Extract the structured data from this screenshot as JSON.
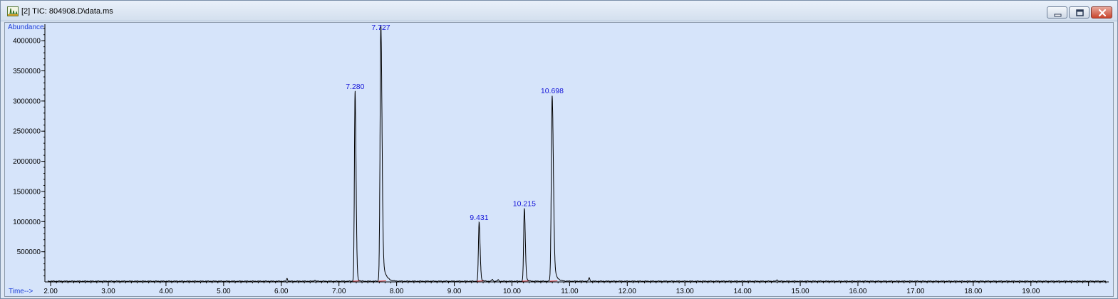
{
  "window": {
    "title": "[2] TIC: 804908.D\\data.ms",
    "icon": "chromatogram-app-icon"
  },
  "controls": {
    "minimize": "minimize-icon",
    "maximize": "maximize-icon",
    "close": "close-icon"
  },
  "colors": {
    "plot_background": "#d6e4fa",
    "trace": "#000000",
    "peak_label": "#1414d8",
    "axis_label": "#1f3fd9",
    "baseline": "#e03030"
  },
  "chart_data": {
    "type": "line",
    "title": "TIC: 804908.D\\data.ms",
    "ylabel": "Abundance",
    "xlabel": "Time-->",
    "xlim": [
      1.9,
      20.35
    ],
    "ylim": [
      0,
      4250000
    ],
    "x_ticks": [
      2.0,
      3.0,
      4.0,
      5.0,
      6.0,
      7.0,
      8.0,
      9.0,
      10.0,
      11.0,
      12.0,
      13.0,
      14.0,
      15.0,
      16.0,
      17.0,
      18.0,
      19.0
    ],
    "x_tick_labels": [
      "2.00",
      "3.00",
      "4.00",
      "5.00",
      "6.00",
      "7.00",
      "8.00",
      "9.00",
      "10.00",
      "11.00",
      "12.00",
      "13.00",
      "14.00",
      "15.00",
      "16.00",
      "17.00",
      "18.00",
      "19.00"
    ],
    "y_ticks": [
      500000,
      1000000,
      1500000,
      2000000,
      2500000,
      3000000,
      3500000,
      4000000
    ],
    "y_tick_labels": [
      "500000",
      "1000000",
      "1500000",
      "2000000",
      "2500000",
      "3000000",
      "3500000",
      "4000000"
    ],
    "baseline": 12000,
    "peaks": [
      {
        "rt": 7.28,
        "label": "7.280",
        "height": 3150000,
        "width": 0.012,
        "tail": 0.02
      },
      {
        "rt": 7.727,
        "label": "7.727",
        "height": 4250000,
        "width": 0.014,
        "tail": 0.05
      },
      {
        "rt": 9.431,
        "label": "9.431",
        "height": 980000,
        "width": 0.012,
        "tail": 0.025
      },
      {
        "rt": 10.215,
        "label": "10.215",
        "height": 1210000,
        "width": 0.012,
        "tail": 0.025
      },
      {
        "rt": 10.698,
        "label": "10.698",
        "height": 3080000,
        "width": 0.015,
        "tail": 0.045
      }
    ],
    "minor_peaks": [
      {
        "rt": 6.1,
        "height": 45000
      },
      {
        "rt": 6.58,
        "height": 20000
      },
      {
        "rt": 9.66,
        "height": 30000
      },
      {
        "rt": 9.76,
        "height": 22000
      },
      {
        "rt": 11.34,
        "height": 60000
      },
      {
        "rt": 14.6,
        "height": 25000
      }
    ]
  }
}
